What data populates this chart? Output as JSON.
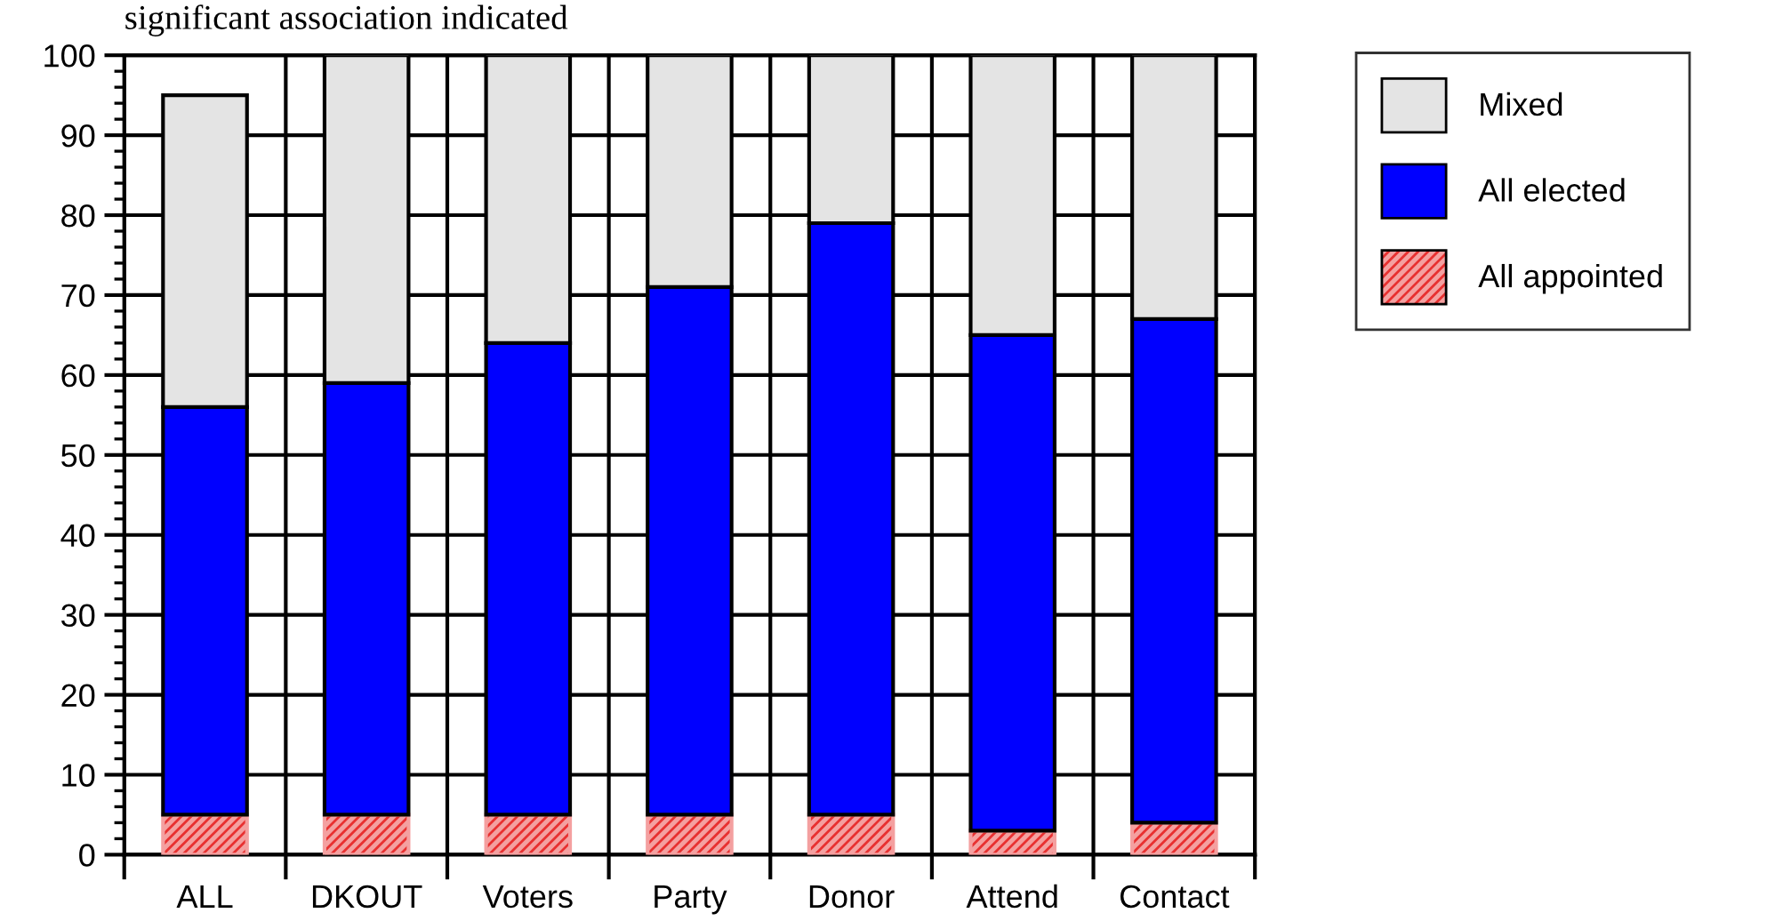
{
  "chart_data": {
    "type": "bar",
    "title": "significant association indicated",
    "categories": [
      "ALL",
      "DKOUT",
      "Voters",
      "Party",
      "Donor",
      "Attend",
      "Contact"
    ],
    "stacked": true,
    "series": [
      {
        "name": "All appointed",
        "color": "#f4a0a0",
        "values": [
          5,
          5,
          5,
          5,
          5,
          3,
          4
        ]
      },
      {
        "name": "All elected",
        "color": "#0000ff",
        "values": [
          51,
          54,
          59,
          66,
          74,
          62,
          63
        ]
      },
      {
        "name": "Mixed",
        "color": "#e4e4e4",
        "values": [
          39,
          41,
          36,
          29,
          21,
          35,
          33
        ]
      }
    ],
    "ylim": [
      0,
      100
    ],
    "yticks": [
      0,
      10,
      20,
      30,
      40,
      50,
      60,
      70,
      80,
      90,
      100
    ],
    "grid": true,
    "legend": "top right"
  }
}
